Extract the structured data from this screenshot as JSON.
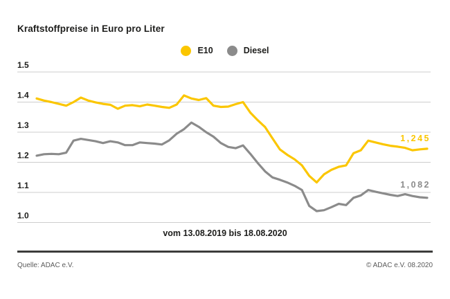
{
  "title": "Kraftstoffpreise in Euro pro Liter",
  "legend": {
    "e10_label": "E10",
    "diesel_label": "Diesel"
  },
  "caption": "vom 13.08.2019 bis 18.08.2020",
  "end_labels": {
    "e10": "1,245",
    "diesel": "1,082"
  },
  "footer": {
    "source": "Quelle: ADAC e.V.",
    "copyright": "© ADAC e.V. 08.2020"
  },
  "colors": {
    "e10": "#fbc600",
    "diesel": "#8b8b8b",
    "grid": "#cdcdcd",
    "text": "#1d1d1b",
    "footer_text": "#5a5a5a",
    "divider": "#3c3c3b"
  },
  "chart_data": {
    "type": "line",
    "title": "Kraftstoffpreise in Euro pro Liter",
    "xlabel": "vom 13.08.2019 bis 18.08.2020",
    "ylabel": "Euro pro Liter",
    "start_date": "13.08.2019",
    "end_date": "18.08.2020",
    "interval": "weekly",
    "ylim": [
      1.0,
      1.5
    ],
    "grid": "horizontal",
    "legend_position": "top-center",
    "yticks": [
      {
        "label": "1.5",
        "value": 1.5
      },
      {
        "label": "1.4",
        "value": 1.4
      },
      {
        "label": "1.3",
        "value": 1.3
      },
      {
        "label": "1.2",
        "value": 1.2
      },
      {
        "label": "1.1",
        "value": 1.1
      },
      {
        "label": "1.0",
        "value": 1.0
      }
    ],
    "series": [
      {
        "name": "E10",
        "color": "#fbc600",
        "end_label": "1,245",
        "end_value": 1.245,
        "values": [
          1.412,
          1.405,
          1.4,
          1.394,
          1.388,
          1.4,
          1.415,
          1.405,
          1.399,
          1.394,
          1.391,
          1.378,
          1.388,
          1.39,
          1.386,
          1.392,
          1.388,
          1.384,
          1.381,
          1.392,
          1.422,
          1.412,
          1.407,
          1.413,
          1.388,
          1.384,
          1.385,
          1.393,
          1.4,
          1.365,
          1.34,
          1.317,
          1.28,
          1.243,
          1.225,
          1.21,
          1.19,
          1.155,
          1.133,
          1.16,
          1.175,
          1.185,
          1.19,
          1.23,
          1.24,
          1.272,
          1.266,
          1.26,
          1.255,
          1.252,
          1.248,
          1.24,
          1.243,
          1.245
        ]
      },
      {
        "name": "Diesel",
        "color": "#8b8b8b",
        "end_label": "1,082",
        "end_value": 1.082,
        "values": [
          1.222,
          1.227,
          1.228,
          1.227,
          1.232,
          1.272,
          1.278,
          1.274,
          1.27,
          1.264,
          1.27,
          1.266,
          1.257,
          1.257,
          1.266,
          1.264,
          1.262,
          1.259,
          1.273,
          1.295,
          1.31,
          1.332,
          1.318,
          1.3,
          1.285,
          1.264,
          1.251,
          1.247,
          1.256,
          1.228,
          1.198,
          1.17,
          1.15,
          1.142,
          1.133,
          1.122,
          1.108,
          1.055,
          1.038,
          1.041,
          1.051,
          1.062,
          1.058,
          1.082,
          1.09,
          1.108,
          1.102,
          1.097,
          1.092,
          1.088,
          1.094,
          1.088,
          1.084,
          1.082
        ]
      }
    ]
  }
}
